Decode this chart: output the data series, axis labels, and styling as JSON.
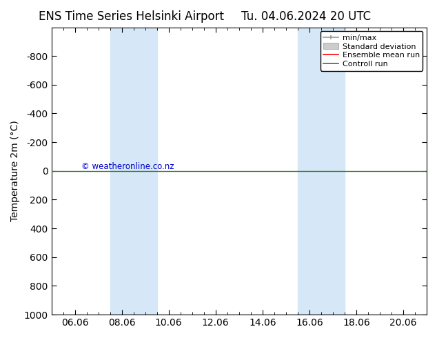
{
  "title_left": "ENS Time Series Helsinki Airport",
  "title_right": "Tu. 04.06.2024 20 UTC",
  "ylabel": "Temperature 2m (°C)",
  "ylim_top": -1000,
  "ylim_bottom": 1000,
  "yticks": [
    -800,
    -600,
    -400,
    -200,
    0,
    200,
    400,
    600,
    800,
    1000
  ],
  "xtick_labels": [
    "06.06",
    "08.06",
    "10.06",
    "12.06",
    "14.06",
    "16.06",
    "18.06",
    "20.06"
  ],
  "xtick_positions": [
    1,
    3,
    5,
    7,
    9,
    11,
    13,
    15
  ],
  "xlim": [
    0,
    16
  ],
  "shaded_bands": [
    {
      "xstart": 2.5,
      "xend": 4.5
    },
    {
      "xstart": 10.5,
      "xend": 12.5
    }
  ],
  "shaded_color": "#d6e8f7",
  "horizontal_line_y": 0,
  "line_green_color": "#2a7b2a",
  "line_red_color": "#ff0000",
  "watermark_text": "© weatheronline.co.nz",
  "watermark_color": "#0000cc",
  "bg_color": "#ffffff",
  "plot_bg_color": "#ffffff",
  "border_color": "#000000",
  "font_size": 10,
  "title_font_size": 12,
  "legend_gray_line": "#999999",
  "legend_gray_box": "#cccccc"
}
